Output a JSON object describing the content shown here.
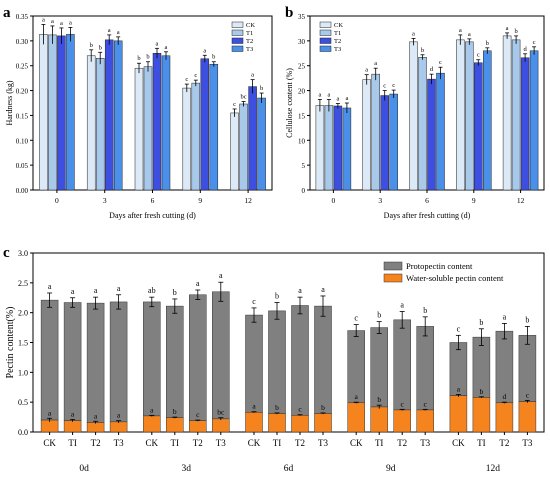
{
  "chart_data": [
    {
      "panel": "a",
      "type": "bar",
      "ylabel": "Hardness (kg)",
      "xlabel": "Days after fresh cutting (d)",
      "categories": [
        "0",
        "3",
        "6",
        "9",
        "12"
      ],
      "ylim": [
        0.0,
        0.35
      ],
      "yticks": [
        "0.00",
        "0.05",
        "0.10",
        "0.15",
        "0.20",
        "0.25",
        "0.30",
        "0.35"
      ],
      "legend": {
        "position": "top-right",
        "entries": [
          "CK",
          "T1",
          "T2",
          "T3"
        ]
      },
      "series": [
        {
          "name": "CK",
          "color": "#dce9f6",
          "values": [
            0.313,
            0.27,
            0.245,
            0.205,
            0.155
          ],
          "errors": [
            0.02,
            0.012,
            0.01,
            0.008,
            0.008
          ],
          "letters": [
            "a",
            "b",
            "b",
            "c",
            "c"
          ]
        },
        {
          "name": "T1",
          "color": "#a9c9eb",
          "values": [
            0.312,
            0.265,
            0.248,
            0.215,
            0.173
          ],
          "errors": [
            0.018,
            0.012,
            0.01,
            0.006,
            0.005
          ],
          "letters": [
            "a",
            "b",
            "b",
            "c",
            "bc"
          ]
        },
        {
          "name": "T2",
          "color": "#3d4fe0",
          "values": [
            0.31,
            0.302,
            0.275,
            0.264,
            0.208
          ],
          "errors": [
            0.016,
            0.01,
            0.01,
            0.007,
            0.014
          ],
          "letters": [
            "a",
            "a",
            "a",
            "a",
            "a"
          ]
        },
        {
          "name": "T3",
          "color": "#4a8fe8",
          "values": [
            0.313,
            0.3,
            0.27,
            0.253,
            0.185
          ],
          "errors": [
            0.014,
            0.008,
            0.008,
            0.005,
            0.01
          ],
          "letters": [
            "a",
            "a",
            "a",
            "b",
            "b"
          ]
        }
      ]
    },
    {
      "panel": "b",
      "type": "bar",
      "ylabel": "Cellulose content (%)",
      "xlabel": "Days after fresh cutting (d)",
      "categories": [
        "0",
        "3",
        "6",
        "9",
        "12"
      ],
      "ylim": [
        0,
        35
      ],
      "yticks": [
        "0",
        "5",
        "10",
        "15",
        "20",
        "25",
        "30",
        "35"
      ],
      "legend": {
        "position": "top-left",
        "entries": [
          "CK",
          "T1",
          "T2",
          "T3"
        ]
      },
      "series": [
        {
          "name": "CK",
          "color": "#dce9f6",
          "values": [
            17.0,
            22.2,
            29.8,
            30.2,
            31.0
          ],
          "errors": [
            1.2,
            1.0,
            0.7,
            1.0,
            0.6
          ],
          "letters": [
            "a",
            "a",
            "a",
            "a",
            "a"
          ]
        },
        {
          "name": "T1",
          "color": "#a9c9eb",
          "values": [
            17.0,
            23.3,
            26.7,
            29.8,
            30.2
          ],
          "errors": [
            1.2,
            1.2,
            0.5,
            0.6,
            0.8
          ],
          "letters": [
            "a",
            "a",
            "b",
            "a",
            "b"
          ]
        },
        {
          "name": "T2",
          "color": "#3d4fe0",
          "values": [
            16.9,
            19.0,
            22.3,
            25.6,
            26.6
          ],
          "errors": [
            0.5,
            1.0,
            1.0,
            0.6,
            0.8
          ],
          "letters": [
            "a",
            "c",
            "d",
            "c",
            "d"
          ]
        },
        {
          "name": "T3",
          "color": "#4a8fe8",
          "values": [
            16.5,
            19.3,
            23.5,
            28.0,
            28.0
          ],
          "errors": [
            1.0,
            0.8,
            1.2,
            0.6,
            0.8
          ],
          "letters": [
            "a",
            "c",
            "c",
            "b",
            "c"
          ]
        }
      ]
    },
    {
      "panel": "c",
      "type": "bar",
      "stacked": true,
      "ylabel": "Pectin content(%)",
      "ylim": [
        0.0,
        3.0
      ],
      "yticks": [
        "0.0",
        "0.5",
        "1.0",
        "1.5",
        "2.0",
        "2.5",
        "3.0"
      ],
      "groups": [
        "0d",
        "3d",
        "6d",
        "9d",
        "12d"
      ],
      "bar_labels": [
        "CK",
        "TI",
        "T2",
        "T3"
      ],
      "legend": {
        "position": "top-right",
        "entries": [
          "Protopectin content",
          "Water-soluble pectin content"
        ]
      },
      "colors": {
        "protopectin": "#808080",
        "water_soluble": "#f5841f"
      },
      "total": {
        "values": [
          [
            2.21,
            2.17,
            2.16,
            2.18
          ],
          [
            2.18,
            2.11,
            2.3,
            2.35
          ],
          [
            1.96,
            2.03,
            2.12,
            2.11
          ],
          [
            1.7,
            1.75,
            1.88,
            1.77
          ],
          [
            1.5,
            1.59,
            1.69,
            1.62
          ]
        ],
        "errors": [
          [
            0.12,
            0.08,
            0.1,
            0.12
          ],
          [
            0.08,
            0.12,
            0.08,
            0.16
          ],
          [
            0.12,
            0.14,
            0.14,
            0.17
          ],
          [
            0.1,
            0.1,
            0.14,
            0.16
          ],
          [
            0.12,
            0.14,
            0.13,
            0.15
          ]
        ],
        "letters": [
          [
            "a",
            "a",
            "a",
            "a"
          ],
          [
            "ab",
            "b",
            "a",
            "a"
          ],
          [
            "c",
            "b",
            "a",
            "a"
          ],
          [
            "c",
            "b",
            "a",
            "b"
          ],
          [
            "c",
            "b",
            "a",
            "b"
          ]
        ]
      },
      "water_soluble": {
        "values": [
          [
            0.2,
            0.19,
            0.16,
            0.17
          ],
          [
            0.27,
            0.24,
            0.19,
            0.22
          ],
          [
            0.33,
            0.31,
            0.28,
            0.31
          ],
          [
            0.49,
            0.42,
            0.37,
            0.37
          ],
          [
            0.61,
            0.58,
            0.49,
            0.51
          ]
        ],
        "errors": [
          [
            0.03,
            0.02,
            0.02,
            0.02
          ],
          [
            0.01,
            0.01,
            0.01,
            0.02
          ],
          [
            0.01,
            0.01,
            0.01,
            0.01
          ],
          [
            0.01,
            0.03,
            0.01,
            0.01
          ],
          [
            0.02,
            0.01,
            0.01,
            0.02
          ]
        ],
        "letters": [
          [
            "a",
            "a",
            "a",
            "a"
          ],
          [
            "a",
            "b",
            "c",
            "bc"
          ],
          [
            "a",
            "b",
            "c",
            "b"
          ],
          [
            "a",
            "b",
            "c",
            "c"
          ],
          [
            "a",
            "b",
            "d",
            "c"
          ]
        ]
      }
    }
  ]
}
